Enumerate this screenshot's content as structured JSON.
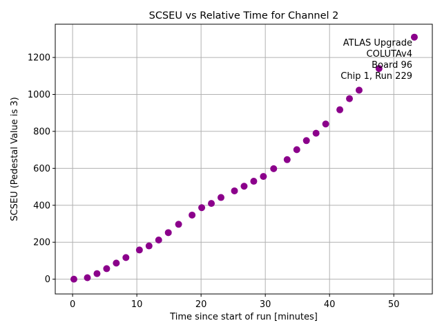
{
  "chart_data": {
    "type": "scatter",
    "title": "SCSEU vs Relative Time for Channel 2",
    "xlabel": "Time since start of run [minutes]",
    "ylabel": "SCSEU (Pedestal Value is 3)",
    "xlim": [
      -2.7,
      56
    ],
    "ylim": [
      -80,
      1380
    ],
    "xticks": [
      0,
      10,
      20,
      30,
      40,
      50
    ],
    "yticks": [
      0,
      200,
      400,
      600,
      800,
      1000,
      1200
    ],
    "grid": true,
    "marker_color": "#8b008b",
    "annotation": [
      "ATLAS Upgrade",
      "COLUTAv4",
      "Board 96",
      "Chip 1, Run 229"
    ],
    "annotation_placement": "top-right",
    "series": [
      {
        "points": [
          [
            0.2,
            0
          ],
          [
            2.3,
            8
          ],
          [
            3.8,
            30
          ],
          [
            5.3,
            57
          ],
          [
            6.8,
            87
          ],
          [
            8.3,
            117
          ],
          [
            10.4,
            158
          ],
          [
            11.9,
            180
          ],
          [
            13.4,
            212
          ],
          [
            14.9,
            252
          ],
          [
            16.5,
            297
          ],
          [
            18.6,
            347
          ],
          [
            20.1,
            387
          ],
          [
            21.6,
            410
          ],
          [
            23.1,
            442
          ],
          [
            25.2,
            478
          ],
          [
            26.7,
            503
          ],
          [
            28.2,
            530
          ],
          [
            29.7,
            556
          ],
          [
            31.3,
            598
          ],
          [
            33.4,
            647
          ],
          [
            34.9,
            701
          ],
          [
            36.4,
            750
          ],
          [
            37.9,
            790
          ],
          [
            39.4,
            840
          ],
          [
            41.6,
            917
          ],
          [
            43.1,
            977
          ],
          [
            44.6,
            1023
          ],
          [
            47.7,
            1140
          ],
          [
            53.2,
            1310
          ]
        ]
      }
    ]
  }
}
